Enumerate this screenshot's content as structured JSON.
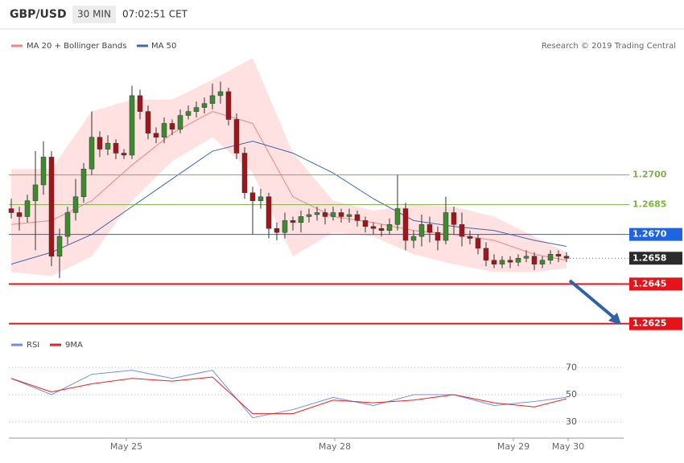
{
  "chart_data": {
    "type": "candlestick",
    "header": {
      "symbol": "GBP/USD",
      "interval": "30 MIN",
      "time": "07:02:51 CET"
    },
    "credit": "Research © 2019 Trading Central",
    "ylim": [
      1.262,
      1.2772
    ],
    "xlim": [
      -0.3,
      76.1
    ],
    "xticks": [
      {
        "value": 14.3,
        "label": "May 25"
      },
      {
        "value": 40.2,
        "label": "May 28"
      },
      {
        "value": 62.4,
        "label": "May 29"
      },
      {
        "value": 69.2,
        "label": "May 30"
      }
    ],
    "up_color": "#3d8b2f",
    "down_color": "#a3141a",
    "candles": [
      [
        1.2683,
        1.2688,
        1.2678,
        1.2681
      ],
      [
        1.2681,
        1.2684,
        1.2672,
        1.2679
      ],
      [
        1.2679,
        1.269,
        1.2676,
        1.2687
      ],
      [
        1.2687,
        1.2712,
        1.2662,
        1.2695
      ],
      [
        1.2695,
        1.2717,
        1.269,
        1.2709
      ],
      [
        1.2709,
        1.2712,
        1.2654,
        1.2659
      ],
      [
        1.2659,
        1.2673,
        1.2648,
        1.2669
      ],
      [
        1.2669,
        1.2684,
        1.2665,
        1.2681
      ],
      [
        1.2681,
        1.2698,
        1.2677,
        1.2689
      ],
      [
        1.2689,
        1.2706,
        1.2686,
        1.2703
      ],
      [
        1.2703,
        1.2732,
        1.27,
        1.2719
      ],
      [
        1.2719,
        1.2722,
        1.2709,
        1.2713
      ],
      [
        1.2713,
        1.272,
        1.271,
        1.2716
      ],
      [
        1.2716,
        1.2718,
        1.2708,
        1.2711
      ],
      [
        1.2711,
        1.2713,
        1.2708,
        1.271
      ],
      [
        1.271,
        1.2745,
        1.2708,
        1.274
      ],
      [
        1.274,
        1.2743,
        1.2728,
        1.2732
      ],
      [
        1.2732,
        1.2735,
        1.2718,
        1.2721
      ],
      [
        1.2721,
        1.2724,
        1.2716,
        1.2719
      ],
      [
        1.2719,
        1.2729,
        1.2716,
        1.2726
      ],
      [
        1.2726,
        1.2728,
        1.272,
        1.2723
      ],
      [
        1.2723,
        1.2733,
        1.2721,
        1.273
      ],
      [
        1.273,
        1.2735,
        1.2728,
        1.2732
      ],
      [
        1.2732,
        1.2737,
        1.2729,
        1.2734
      ],
      [
        1.2734,
        1.2739,
        1.2731,
        1.2736
      ],
      [
        1.2736,
        1.2746,
        1.2733,
        1.274
      ],
      [
        1.274,
        1.2747,
        1.2736,
        1.2742
      ],
      [
        1.2742,
        1.2744,
        1.2725,
        1.2728
      ],
      [
        1.2728,
        1.2731,
        1.2708,
        1.2711
      ],
      [
        1.2711,
        1.2714,
        1.2688,
        1.2691
      ],
      [
        1.2691,
        1.2694,
        1.267,
        1.2687
      ],
      [
        1.2687,
        1.2693,
        1.2683,
        1.2689
      ],
      [
        1.2689,
        1.2691,
        1.2668,
        1.2673
      ],
      [
        1.2673,
        1.2676,
        1.2667,
        1.2671
      ],
      [
        1.2671,
        1.2681,
        1.2668,
        1.2677
      ],
      [
        1.2677,
        1.2679,
        1.2672,
        1.2676
      ],
      [
        1.2676,
        1.2682,
        1.2671,
        1.2679
      ],
      [
        1.2679,
        1.2683,
        1.2676,
        1.268
      ],
      [
        1.268,
        1.2684,
        1.2677,
        1.2681
      ],
      [
        1.2681,
        1.2683,
        1.2675,
        1.2679
      ],
      [
        1.2679,
        1.2684,
        1.2677,
        1.2681
      ],
      [
        1.2681,
        1.2683,
        1.2676,
        1.2679
      ],
      [
        1.2679,
        1.2683,
        1.2676,
        1.268
      ],
      [
        1.268,
        1.2682,
        1.2674,
        1.2677
      ],
      [
        1.2677,
        1.2679,
        1.2671,
        1.2674
      ],
      [
        1.2674,
        1.2676,
        1.267,
        1.2673
      ],
      [
        1.2673,
        1.2675,
        1.2669,
        1.2672
      ],
      [
        1.2672,
        1.2678,
        1.267,
        1.2675
      ],
      [
        1.2675,
        1.27,
        1.2672,
        1.2683
      ],
      [
        1.2683,
        1.2686,
        1.2662,
        1.2667
      ],
      [
        1.2667,
        1.2672,
        1.2663,
        1.2669
      ],
      [
        1.2669,
        1.268,
        1.2664,
        1.2675
      ],
      [
        1.2675,
        1.2679,
        1.2666,
        1.2671
      ],
      [
        1.2671,
        1.2674,
        1.2662,
        1.2667
      ],
      [
        1.2667,
        1.2689,
        1.2665,
        1.2681
      ],
      [
        1.2681,
        1.2684,
        1.267,
        1.2675
      ],
      [
        1.2675,
        1.2681,
        1.2664,
        1.2669
      ],
      [
        1.2669,
        1.2672,
        1.2665,
        1.2668
      ],
      [
        1.2668,
        1.267,
        1.266,
        1.2663
      ],
      [
        1.2663,
        1.2666,
        1.2654,
        1.2657
      ],
      [
        1.2657,
        1.266,
        1.2653,
        1.2655
      ],
      [
        1.2655,
        1.2659,
        1.2653,
        1.2657
      ],
      [
        1.2657,
        1.2659,
        1.2653,
        1.2656
      ],
      [
        1.2656,
        1.266,
        1.2654,
        1.2658
      ],
      [
        1.2658,
        1.2662,
        1.2656,
        1.2659
      ],
      [
        1.2659,
        1.2661,
        1.2652,
        1.2655
      ],
      [
        1.2655,
        1.2659,
        1.2653,
        1.2657
      ],
      [
        1.2657,
        1.2662,
        1.2655,
        1.266
      ],
      [
        1.266,
        1.2662,
        1.2656,
        1.2659
      ],
      [
        1.2659,
        1.2661,
        1.2656,
        1.2658
      ]
    ],
    "bollinger": {
      "name": "MA 20 + Bollinger Bands",
      "color": "#f08585",
      "fill": "#ffe1e1",
      "x": [
        0,
        5,
        10,
        15,
        20,
        25,
        30,
        35,
        40,
        45,
        50,
        55,
        60,
        65,
        69
      ],
      "upper": [
        1.2703,
        1.2703,
        1.2732,
        1.2738,
        1.2738,
        1.2748,
        1.2759,
        1.2711,
        1.2687,
        1.2682,
        1.2685,
        1.2684,
        1.2679,
        1.2669,
        1.2661
      ],
      "middle": [
        1.2675,
        1.2677,
        1.2687,
        1.2705,
        1.2721,
        1.2732,
        1.2726,
        1.2689,
        1.2679,
        1.2676,
        1.2672,
        1.267,
        1.2667,
        1.266,
        1.2657
      ],
      "lower": [
        1.2651,
        1.2649,
        1.2659,
        1.2687,
        1.2707,
        1.2719,
        1.2701,
        1.2659,
        1.2671,
        1.2669,
        1.266,
        1.2655,
        1.2651,
        1.2651,
        1.2653
      ]
    },
    "ma50": {
      "name": "MA 50",
      "color": "#3b68b0",
      "x": [
        0,
        5,
        10,
        15,
        20,
        25,
        30,
        35,
        40,
        45,
        50,
        55,
        60,
        65,
        69
      ],
      "values": [
        1.2655,
        1.2661,
        1.267,
        1.2684,
        1.2698,
        1.2712,
        1.2717,
        1.2711,
        1.2701,
        1.2688,
        1.2677,
        1.2674,
        1.2672,
        1.2667,
        1.2664
      ]
    },
    "levels": [
      {
        "value": 1.27,
        "label": "1.2700",
        "color": "#7cb342",
        "boxed": false
      },
      {
        "value": 1.2685,
        "label": "1.2685",
        "color": "#7cb342",
        "boxed": false
      },
      {
        "value": 1.267,
        "label": "1.2670",
        "color": "#1e63e0",
        "boxed": true
      },
      {
        "value": 1.2658,
        "label": "1.2658",
        "color": "#2b2b2b",
        "boxed": true
      },
      {
        "value": 1.2645,
        "label": "1.2645",
        "color": "#e5141b",
        "boxed": true
      },
      {
        "value": 1.2625,
        "label": "1.2625",
        "color": "#e5141b",
        "boxed": true
      }
    ],
    "rsi": {
      "ylim": [
        18,
        82
      ],
      "yticks": [
        30,
        50,
        70
      ],
      "x": [
        0,
        5,
        10,
        15,
        20,
        25,
        30,
        35,
        40,
        45,
        50,
        55,
        60,
        65,
        69
      ],
      "series": [
        {
          "name": "RSI",
          "color": "#6d8fe3",
          "values": [
            62,
            50,
            65,
            68,
            62,
            68,
            33,
            39,
            48,
            42,
            50,
            50,
            42,
            45,
            48
          ]
        },
        {
          "name": "9MA",
          "color": "#e82020",
          "values": [
            62,
            52,
            58,
            62,
            60,
            63,
            36,
            36,
            46,
            44,
            46,
            50,
            44,
            41,
            47
          ]
        }
      ]
    }
  }
}
